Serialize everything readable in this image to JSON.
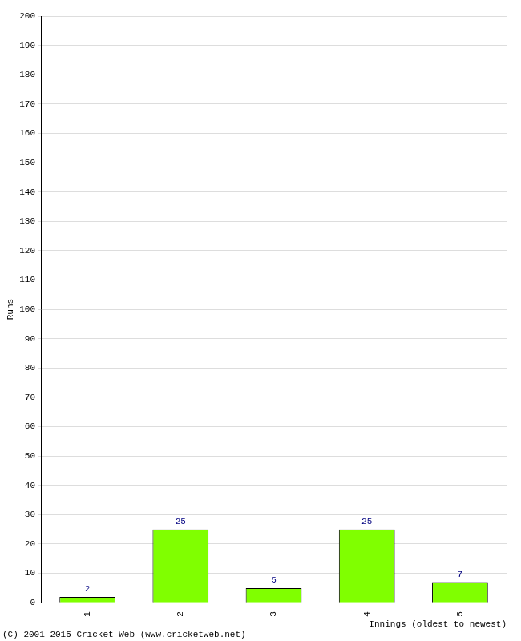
{
  "chart_data": {
    "type": "bar",
    "categories": [
      "1",
      "2",
      "3",
      "4",
      "5"
    ],
    "values": [
      2,
      25,
      5,
      25,
      7
    ],
    "color": "#80ff00",
    "ylim": [
      0,
      200
    ],
    "yticks": [
      0,
      10,
      20,
      30,
      40,
      50,
      60,
      70,
      80,
      90,
      100,
      110,
      120,
      130,
      140,
      150,
      160,
      170,
      180,
      190,
      200
    ],
    "grid": true,
    "data_labels": true,
    "x_label": "Innings (oldest to newest)",
    "y_label": "Runs",
    "annotations": [
      "(C) 2001-2015 Cricket Web (www.cricketweb.net)"
    ]
  }
}
